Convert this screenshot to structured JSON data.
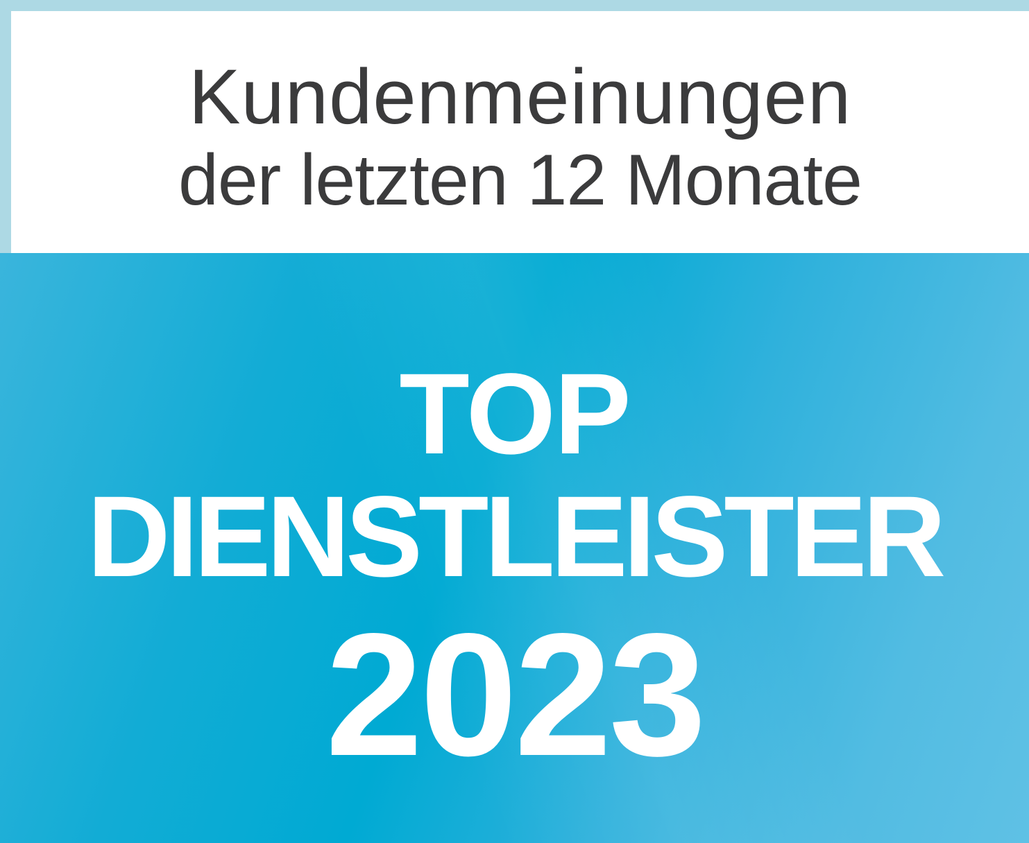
{
  "header": {
    "line1": "Kundenmeinungen",
    "line2": "der letzten 12 Monate"
  },
  "badge": {
    "line1": "TOP",
    "line2": "DIENSTLEISTER",
    "year": "2023"
  },
  "colors": {
    "border": "#add9e4",
    "header_text": "#3b3b3c",
    "badge_blue": "#00aad3",
    "badge_text": "#ffffff"
  }
}
